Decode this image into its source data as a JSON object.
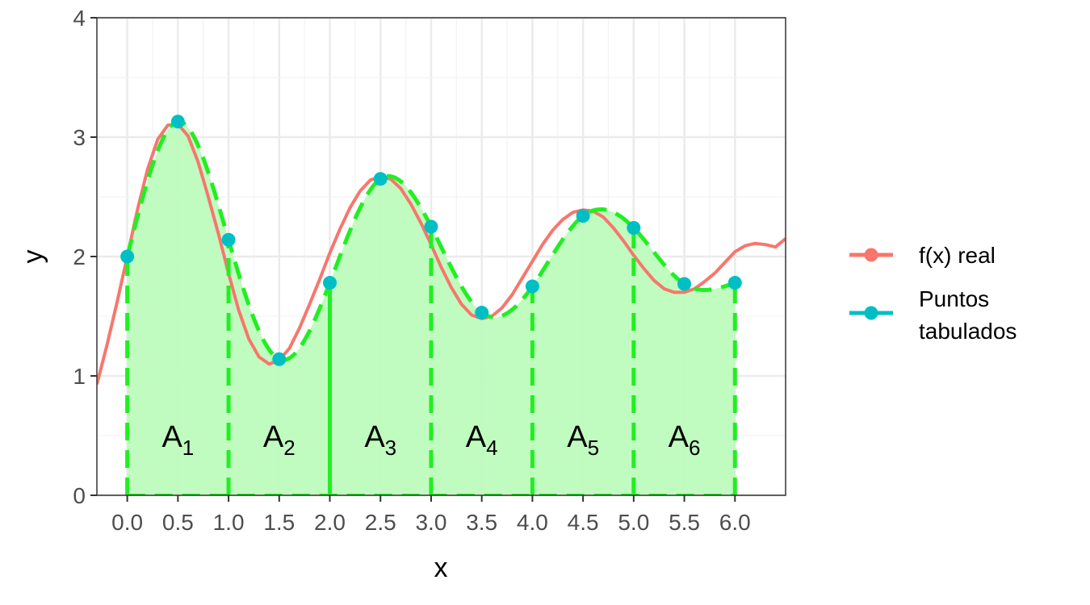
{
  "chart_data": {
    "type": "line",
    "xlabel": "x",
    "ylabel": "y",
    "xlim": [
      -0.3,
      6.5
    ],
    "ylim": [
      0,
      4
    ],
    "x_ticks": [
      "0.0",
      "0.5",
      "1.0",
      "1.5",
      "2.0",
      "2.5",
      "3.0",
      "3.5",
      "4.0",
      "4.5",
      "5.0",
      "5.5",
      "6.0"
    ],
    "y_ticks": [
      "0",
      "1",
      "2",
      "3",
      "4"
    ],
    "grid": true,
    "legend_position": "right",
    "series": [
      {
        "name": "f(x) real",
        "color": "#F8766D",
        "x": [
          -0.3,
          -0.2,
          -0.1,
          0.0,
          0.1,
          0.2,
          0.3,
          0.4,
          0.5,
          0.6,
          0.7,
          0.8,
          0.9,
          1.0,
          1.1,
          1.2,
          1.3,
          1.4,
          1.5,
          1.6,
          1.7,
          1.8,
          1.9,
          2.0,
          2.1,
          2.2,
          2.3,
          2.4,
          2.5,
          2.6,
          2.7,
          2.8,
          2.9,
          3.0,
          3.1,
          3.2,
          3.3,
          3.4,
          3.5,
          3.6,
          3.7,
          3.8,
          3.9,
          4.0,
          4.1,
          4.2,
          4.3,
          4.4,
          4.5,
          4.6,
          4.7,
          4.8,
          4.9,
          5.0,
          5.1,
          5.2,
          5.3,
          5.4,
          5.5,
          5.6,
          5.7,
          5.8,
          5.9,
          6.0,
          6.1,
          6.2,
          6.3,
          6.4,
          6.5
        ],
        "y": [
          0.93,
          1.26,
          1.62,
          2.0,
          2.39,
          2.73,
          2.98,
          3.1,
          3.11,
          3.01,
          2.79,
          2.5,
          2.19,
          1.86,
          1.55,
          1.31,
          1.16,
          1.1,
          1.13,
          1.23,
          1.4,
          1.6,
          1.81,
          2.03,
          2.23,
          2.41,
          2.55,
          2.64,
          2.67,
          2.65,
          2.57,
          2.44,
          2.28,
          2.1,
          1.91,
          1.74,
          1.6,
          1.51,
          1.48,
          1.5,
          1.57,
          1.68,
          1.82,
          1.96,
          2.1,
          2.22,
          2.31,
          2.37,
          2.39,
          2.38,
          2.33,
          2.24,
          2.13,
          2.01,
          1.9,
          1.8,
          1.73,
          1.7,
          1.7,
          1.73,
          1.79,
          1.86,
          1.95,
          2.04,
          2.09,
          2.11,
          2.1,
          2.08,
          2.15
        ]
      },
      {
        "name": "Puntos\n tabulados",
        "color": "#00BFC4",
        "x": [
          0.0,
          0.5,
          1.0,
          1.5,
          2.0,
          2.5,
          3.0,
          3.5,
          4.0,
          4.5,
          5.0,
          5.5,
          6.0
        ],
        "y": [
          2.0,
          3.13,
          2.14,
          1.14,
          1.78,
          2.65,
          2.25,
          1.53,
          1.75,
          2.34,
          2.24,
          1.77,
          1.78
        ]
      }
    ],
    "area_labels": [
      {
        "main": "A",
        "sub": "1",
        "x": 0.5,
        "y": 0.5
      },
      {
        "main": "A",
        "sub": "2",
        "x": 1.5,
        "y": 0.5
      },
      {
        "main": "A",
        "sub": "3",
        "x": 2.5,
        "y": 0.5
      },
      {
        "main": "A",
        "sub": "4",
        "x": 3.5,
        "y": 0.5
      },
      {
        "main": "A",
        "sub": "5",
        "x": 4.5,
        "y": 0.5
      },
      {
        "main": "A",
        "sub": "6",
        "x": 5.5,
        "y": 0.5
      }
    ],
    "interpolation": {
      "color": "#22EE22",
      "fill": "#BDFBBD",
      "boundaries": [
        0,
        1,
        2,
        3,
        4,
        5,
        6
      ],
      "solid_boundaries": [
        2
      ]
    },
    "legend": {
      "entries": [
        {
          "label": "f(x) real",
          "color": "#F8766D"
        },
        {
          "label_lines": [
            "Puntos",
            " tabulados"
          ],
          "color": "#00BFC4"
        }
      ]
    }
  }
}
